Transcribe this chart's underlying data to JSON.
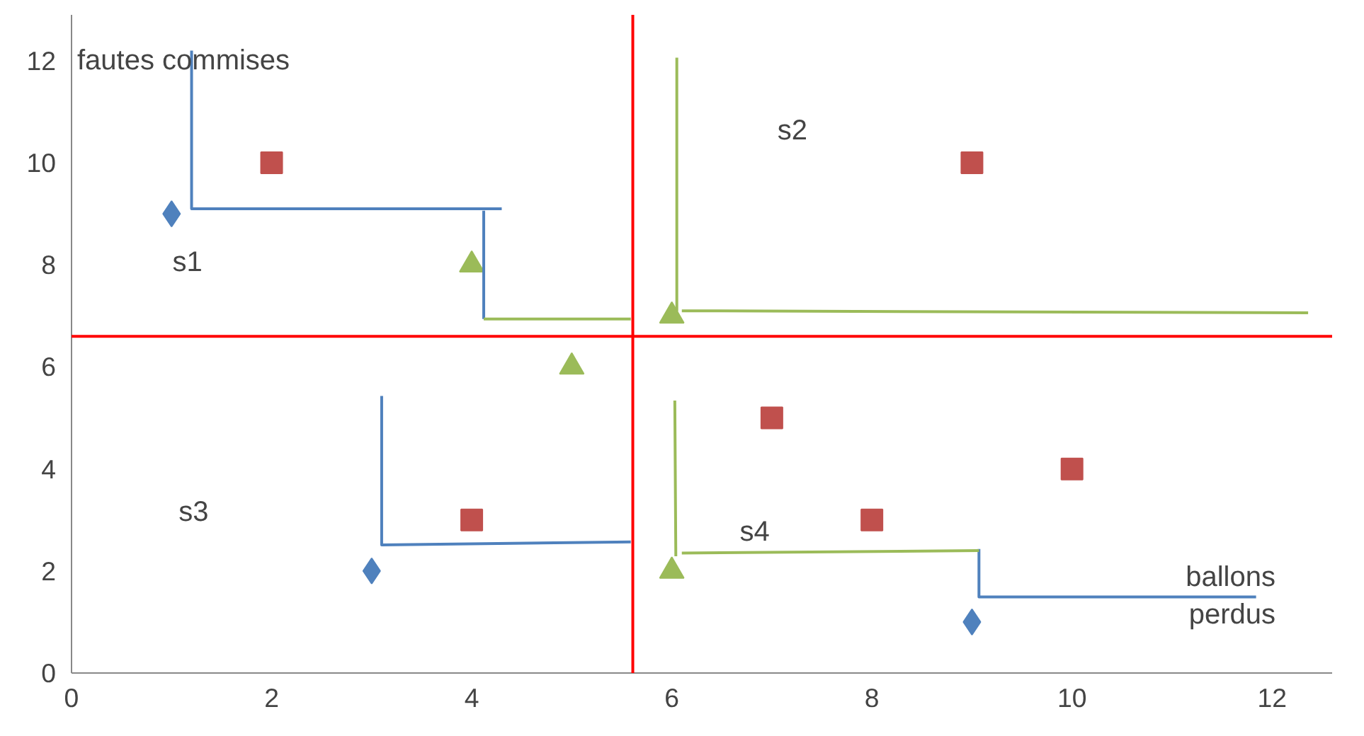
{
  "chart_data": {
    "type": "scatter",
    "xlabel": "ballons perdus",
    "ylabel": "fautes commises",
    "xlim": [
      0,
      12.6
    ],
    "ylim": [
      0,
      12.9
    ],
    "xticks": [
      0,
      2,
      4,
      6,
      8,
      10,
      12
    ],
    "yticks": [
      0,
      2,
      4,
      6,
      8,
      10,
      12
    ],
    "grid": false,
    "series": [
      {
        "color": "#4f81bd",
        "marker": "diamond",
        "x": [
          1,
          3,
          9
        ],
        "values": [
          9,
          2,
          1
        ]
      },
      {
        "color": "#c0504d",
        "marker": "square",
        "x": [
          2,
          9,
          7,
          10,
          4,
          8
        ],
        "values": [
          10,
          10,
          5,
          4,
          3,
          3
        ]
      },
      {
        "color": "#9bbb59",
        "marker": "triangle",
        "x": [
          4,
          6,
          5,
          6
        ],
        "values": [
          8,
          7,
          6,
          2
        ]
      },
      {
        "type": "line",
        "color": "#4f81bd",
        "x": [
          1.2,
          1.2,
          4.3,
          null,
          4.12,
          4.12,
          null,
          3.1,
          3.1,
          5.59,
          null,
          9.07,
          9.07,
          11.84
        ],
        "values": [
          12.2,
          9.1,
          9.1,
          null,
          9.06,
          6.94,
          null,
          5.43,
          2.51,
          2.57,
          null,
          2.43,
          1.49,
          1.49
        ]
      },
      {
        "type": "line",
        "color": "#9bbb59",
        "x": [
          4.12,
          5.59,
          null,
          6.05,
          6.05,
          null,
          6.1,
          12.36,
          null,
          6.03,
          6.04,
          null,
          6.1,
          9.07
        ],
        "values": [
          6.94,
          6.94,
          null,
          12.06,
          7.09,
          null,
          7.1,
          7.06,
          null,
          5.34,
          2.29,
          null,
          2.35,
          2.4
        ]
      }
    ],
    "ref_lines": [
      {
        "axis": "x",
        "value": 5.61,
        "color": "#ff0000"
      },
      {
        "axis": "y",
        "value": 6.6,
        "color": "#ff0000"
      }
    ],
    "annotations": [
      "s1",
      "s2",
      "s3",
      "s4"
    ]
  }
}
